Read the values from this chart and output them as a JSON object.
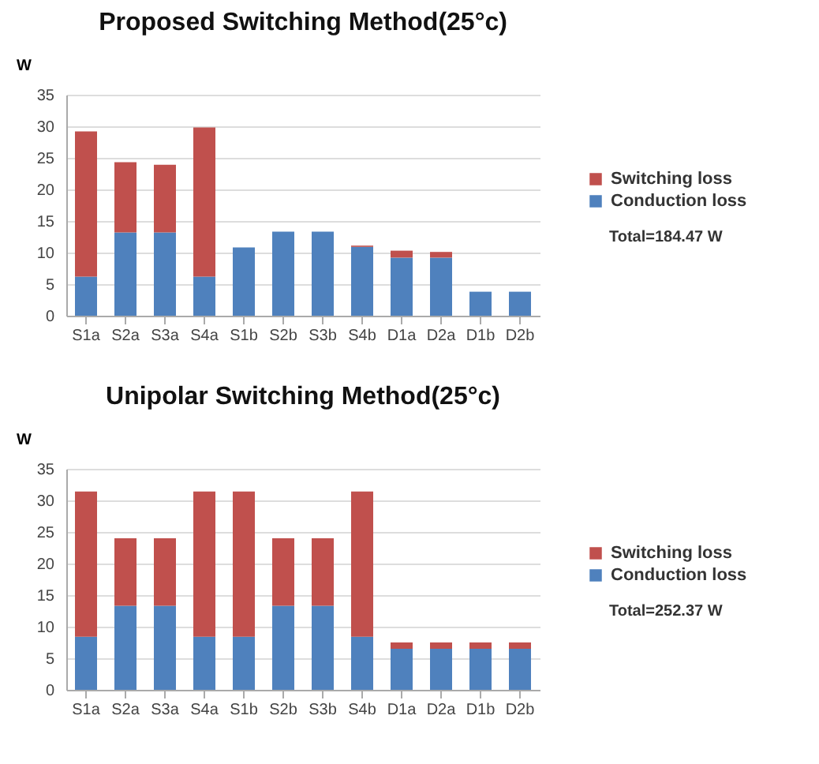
{
  "chart_data": [
    {
      "type": "bar",
      "title": "Proposed Switching Method(25°c)",
      "ylabel": "W",
      "stacked": true,
      "grid": "y",
      "legend": "right",
      "annotations": [
        "Total=184.47 W"
      ],
      "categories": [
        "S1a",
        "S2a",
        "S3a",
        "S4a",
        "S1b",
        "S2b",
        "S3b",
        "S4b",
        "D1a",
        "D2a",
        "D1b",
        "D2b"
      ],
      "ylim": [
        0,
        35
      ],
      "yticks": [
        0,
        5,
        10,
        15,
        20,
        25,
        30,
        35
      ],
      "series": [
        {
          "name": "Conduction loss",
          "color": "#4f81bd",
          "values": [
            6.2,
            13.2,
            13.2,
            6.2,
            10.8,
            13.3,
            13.3,
            10.9,
            9.2,
            9.2,
            3.8,
            3.8
          ]
        },
        {
          "name": "Switching loss",
          "color": "#c0504d",
          "values": [
            23,
            11.1,
            10.7,
            23.6,
            0,
            0,
            0,
            0.2,
            1.1,
            0.9,
            0,
            0
          ]
        }
      ]
    },
    {
      "type": "bar",
      "title": "Unipolar Switching Method(25°c)",
      "ylabel": "W",
      "stacked": true,
      "grid": "y",
      "legend": "right",
      "annotations": [
        "Total=252.37 W"
      ],
      "categories": [
        "S1a",
        "S2a",
        "S3a",
        "S4a",
        "S1b",
        "S2b",
        "S3b",
        "S4b",
        "D1a",
        "D2a",
        "D1b",
        "D2b"
      ],
      "ylim": [
        0,
        35
      ],
      "yticks": [
        0,
        5,
        10,
        15,
        20,
        25,
        30,
        35
      ],
      "series": [
        {
          "name": "Conduction loss",
          "color": "#4f81bd",
          "values": [
            8.4,
            13.3,
            13.3,
            8.4,
            8.4,
            13.3,
            13.3,
            8.4,
            6.5,
            6.5,
            6.5,
            6.5
          ]
        },
        {
          "name": "Switching loss",
          "color": "#c0504d",
          "values": [
            23,
            10.7,
            10.7,
            23,
            23,
            10.7,
            10.7,
            23,
            1,
            1,
            1,
            1
          ]
        }
      ]
    }
  ]
}
